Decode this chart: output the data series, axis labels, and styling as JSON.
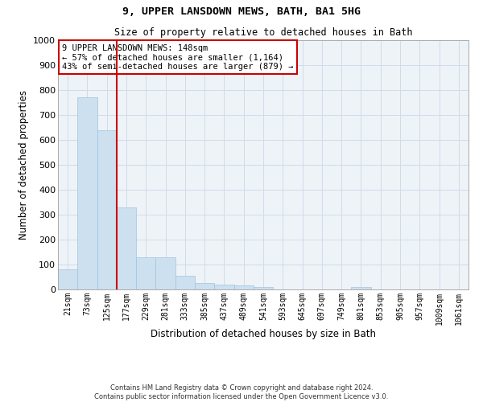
{
  "title": "9, UPPER LANSDOWN MEWS, BATH, BA1 5HG",
  "subtitle": "Size of property relative to detached houses in Bath",
  "xlabel": "Distribution of detached houses by size in Bath",
  "ylabel": "Number of detached properties",
  "footer_line1": "Contains HM Land Registry data © Crown copyright and database right 2024.",
  "footer_line2": "Contains public sector information licensed under the Open Government Licence v3.0.",
  "categories": [
    "21sqm",
    "73sqm",
    "125sqm",
    "177sqm",
    "229sqm",
    "281sqm",
    "333sqm",
    "385sqm",
    "437sqm",
    "489sqm",
    "541sqm",
    "593sqm",
    "645sqm",
    "697sqm",
    "749sqm",
    "801sqm",
    "853sqm",
    "905sqm",
    "957sqm",
    "1009sqm",
    "1061sqm"
  ],
  "values": [
    80,
    770,
    640,
    330,
    130,
    130,
    55,
    25,
    20,
    15,
    10,
    0,
    0,
    0,
    0,
    10,
    0,
    0,
    0,
    0,
    0
  ],
  "bar_color": "#cce0f0",
  "bar_edge_color": "#a0c4e0",
  "bar_width": 1.0,
  "ylim": [
    0,
    1000
  ],
  "yticks": [
    0,
    100,
    200,
    300,
    400,
    500,
    600,
    700,
    800,
    900,
    1000
  ],
  "vline_x": 2.5,
  "vline_color": "#cc0000",
  "annotation_box_text": "9 UPPER LANSDOWN MEWS: 148sqm\n← 57% of detached houses are smaller (1,164)\n43% of semi-detached houses are larger (879) →",
  "grid_color": "#d0dce8",
  "background_color": "#eef3f8"
}
